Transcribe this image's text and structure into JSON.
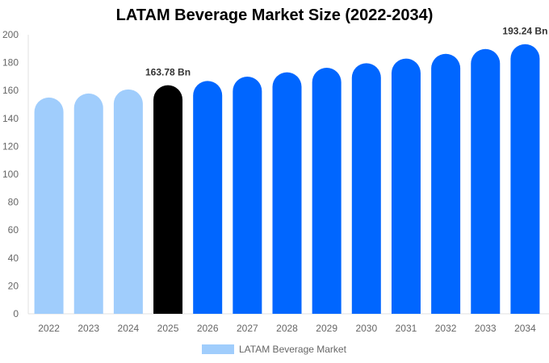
{
  "chart_data": {
    "type": "bar",
    "title": "LATAM Beverage Market Size (2022-2034)",
    "categories": [
      "2022",
      "2023",
      "2024",
      "2025",
      "2026",
      "2027",
      "2028",
      "2029",
      "2030",
      "2031",
      "2032",
      "2033",
      "2034"
    ],
    "series": [
      {
        "name": "LATAM Beverage Market",
        "values": [
          155.0,
          157.87,
          160.8,
          163.78,
          166.82,
          169.92,
          173.07,
          176.28,
          179.55,
          182.88,
          186.27,
          189.73,
          193.24
        ]
      }
    ],
    "ylim": [
      0,
      200
    ],
    "yticks": [
      0,
      20,
      40,
      60,
      80,
      100,
      120,
      140,
      160,
      180,
      200
    ],
    "data_labels": [
      {
        "category": "2025",
        "text": "163.78 Bn"
      },
      {
        "category": "2034",
        "text": "193.24 Bn"
      }
    ],
    "legend_position": "bottom",
    "grid": false,
    "colors": {
      "historic": "#a0cdfc",
      "base_year": "#000000",
      "forecast": "#0066ff"
    }
  }
}
